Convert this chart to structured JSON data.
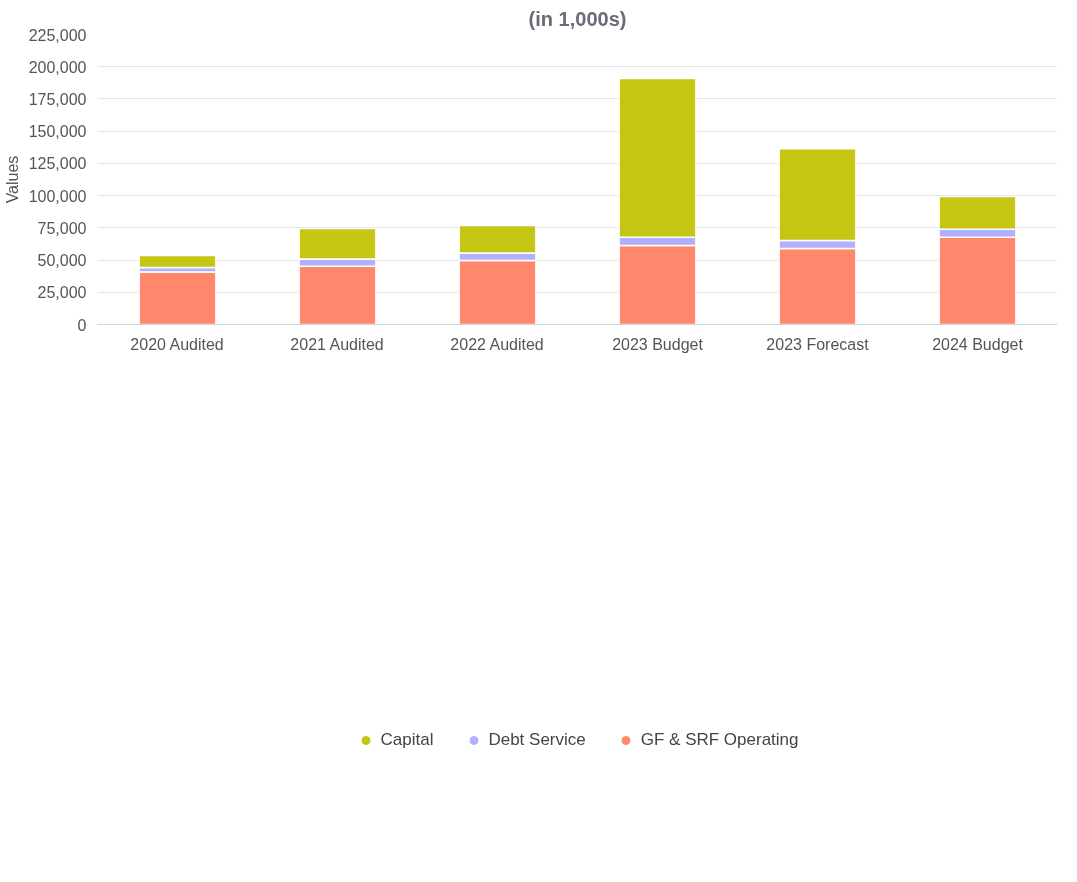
{
  "chart_data": {
    "type": "bar",
    "title": "(in 1,000s)",
    "ylabel": "Values",
    "categories": [
      "2020 Audited",
      "2021 Audited",
      "2022 Audited",
      "2023 Budget",
      "2023 Forecast",
      "2024 Budget"
    ],
    "stacked": true,
    "series": [
      {
        "name": "GF & SRF Operating",
        "color": "#ff876c",
        "values": [
          40700,
          45200,
          49700,
          61300,
          58900,
          67600
        ]
      },
      {
        "name": "Debt Service",
        "color": "#b0b0fc",
        "values": [
          3600,
          5700,
          5700,
          6300,
          6300,
          6300
        ]
      },
      {
        "name": "Capital",
        "color": "#c5c614",
        "values": [
          9300,
          23600,
          21500,
          123300,
          71200,
          25400
        ]
      }
    ],
    "ylim": [
      0,
      225000
    ],
    "yticks": [
      {
        "value": 0,
        "label": "0"
      },
      {
        "value": 25000,
        "label": "25,000"
      },
      {
        "value": 50000,
        "label": "50,000"
      },
      {
        "value": 75000,
        "label": "75,000"
      },
      {
        "value": 100000,
        "label": "100,000"
      },
      {
        "value": 125000,
        "label": "125,000"
      },
      {
        "value": 150000,
        "label": "150,000"
      },
      {
        "value": 175000,
        "label": "175,000"
      },
      {
        "value": 200000,
        "label": "200,000"
      },
      {
        "value": 225000,
        "label": "225,000"
      }
    ],
    "grid": "y",
    "legend": "bottom"
  }
}
